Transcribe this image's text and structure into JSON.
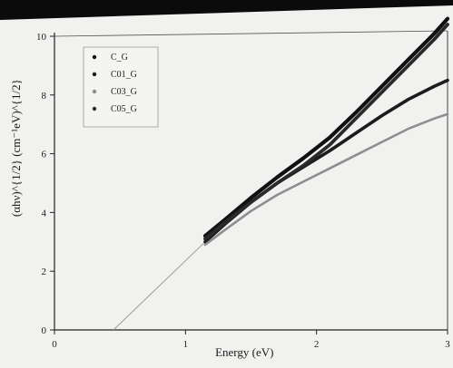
{
  "chart_data": {
    "type": "line",
    "title": "",
    "xlabel": "Energy (eV)",
    "ylabel": "(αhν)^{1/2} (cm⁻¹eV)^{1/2}",
    "xlim": [
      0,
      3
    ],
    "ylim": [
      0,
      10
    ],
    "x_ticks": [
      0,
      1,
      2,
      3
    ],
    "y_ticks": [
      0,
      2,
      4,
      6,
      8,
      10
    ],
    "grid": false,
    "legend_position": "top-left",
    "series": [
      {
        "name": "C_G",
        "color": "#111111",
        "x": [
          1.15,
          1.3,
          1.5,
          1.7,
          1.9,
          2.1,
          2.3,
          2.5,
          2.7,
          2.9,
          3.0
        ],
        "y": [
          3.2,
          3.75,
          4.5,
          5.2,
          5.85,
          6.55,
          7.4,
          8.3,
          9.2,
          10.1,
          10.6
        ]
      },
      {
        "name": "C01_G",
        "color": "#1c1c1c",
        "x": [
          1.15,
          1.3,
          1.5,
          1.7,
          1.9,
          2.1,
          2.3,
          2.5,
          2.7,
          2.9,
          3.0
        ],
        "y": [
          3.0,
          3.6,
          4.35,
          5.0,
          5.55,
          6.1,
          6.7,
          7.3,
          7.85,
          8.3,
          8.5
        ]
      },
      {
        "name": "C03_G",
        "color": "#8e8e8e",
        "x": [
          1.15,
          1.3,
          1.5,
          1.7,
          1.9,
          2.1,
          2.3,
          2.5,
          2.7,
          2.9,
          3.0
        ],
        "y": [
          2.9,
          3.4,
          4.05,
          4.6,
          5.05,
          5.5,
          5.95,
          6.4,
          6.85,
          7.2,
          7.35
        ]
      },
      {
        "name": "C05_G",
        "color": "#2a2a2a",
        "x": [
          1.15,
          1.3,
          1.5,
          1.7,
          1.9,
          2.1,
          2.3,
          2.5,
          2.7,
          2.9,
          3.0
        ],
        "y": [
          3.1,
          3.65,
          4.35,
          5.0,
          5.6,
          6.3,
          7.2,
          8.1,
          9.0,
          9.9,
          10.4
        ]
      }
    ],
    "extrapolation_line": {
      "x": [
        0.45,
        1.15
      ],
      "y": [
        0,
        3.0
      ]
    }
  }
}
